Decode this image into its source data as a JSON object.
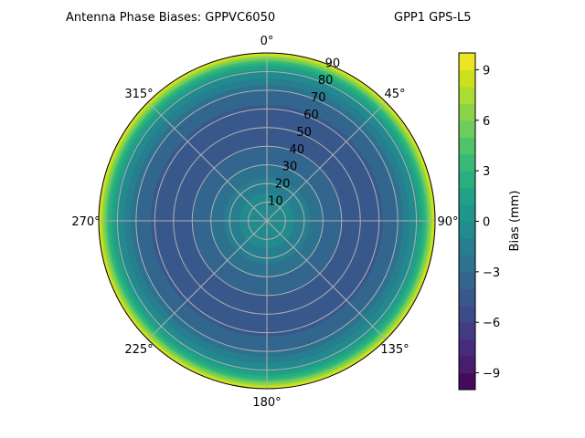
{
  "chart_data": {
    "type": "polar-contour",
    "title": "Antenna Phase Biases: GPPVC6050",
    "subtitle": "GPP1 GPS-L5",
    "theta_direction": "clockwise",
    "theta_zero": "north",
    "theta_ticks": [
      "0°",
      "45°",
      "90°",
      "135°",
      "180°",
      "225°",
      "270°",
      "315°"
    ],
    "theta_tick_values": [
      0,
      45,
      90,
      135,
      180,
      225,
      270,
      315
    ],
    "r_ticks": [
      10,
      20,
      30,
      40,
      50,
      60,
      70,
      80,
      90
    ],
    "rlim": [
      0,
      90
    ],
    "grid": true,
    "colormap": "viridis",
    "colorbar": {
      "label": "Bias (mm)",
      "range": [
        -10,
        10
      ],
      "level_step": 1,
      "ticks": [
        -9,
        -6,
        -3,
        0,
        3,
        6,
        9
      ],
      "tick_labels": [
        "−9",
        "−6",
        "−3",
        "0",
        "3",
        "6",
        "9"
      ]
    },
    "radial_profile": {
      "zenith_deg": [
        0,
        10,
        20,
        30,
        40,
        50,
        60,
        70,
        80,
        85,
        90
      ],
      "bias_mm": [
        0,
        -0.5,
        -1.5,
        -3,
        -4,
        -4.8,
        -4.3,
        -3,
        0,
        3,
        9.5
      ]
    }
  }
}
